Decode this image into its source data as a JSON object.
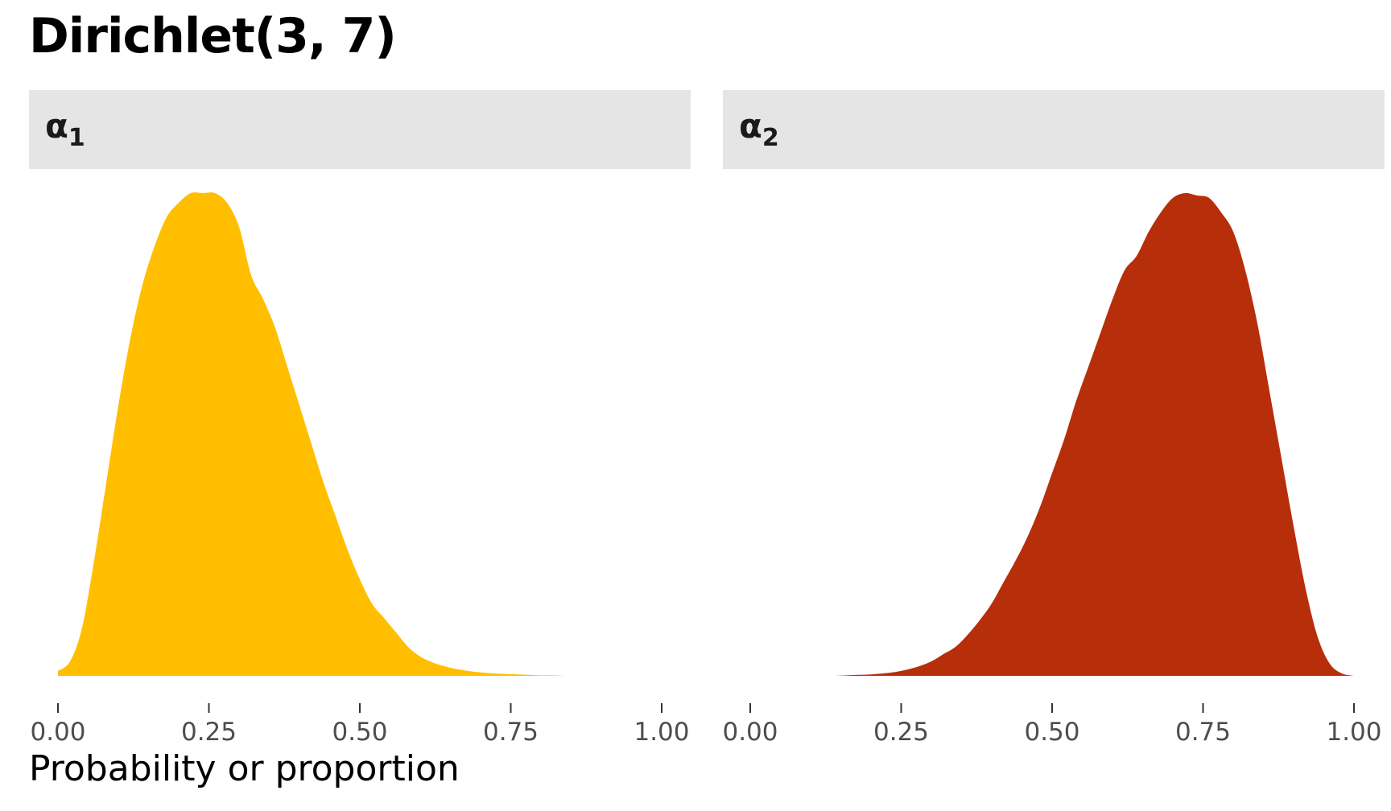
{
  "title": "Dirichlet(3, 7)",
  "xlabel": "Probability or proportion",
  "chart_data": [
    {
      "type": "area",
      "facet_label": "α",
      "facet_subscript": "1",
      "color": "#FFBF00",
      "xlim": [
        0,
        1
      ],
      "x_ticks": [
        "0.00",
        "0.25",
        "0.50",
        "0.75",
        "1.00"
      ],
      "x": [
        0.0,
        0.02,
        0.04,
        0.06,
        0.08,
        0.1,
        0.12,
        0.14,
        0.16,
        0.18,
        0.2,
        0.22,
        0.24,
        0.26,
        0.28,
        0.3,
        0.32,
        0.34,
        0.36,
        0.38,
        0.4,
        0.42,
        0.44,
        0.46,
        0.48,
        0.5,
        0.52,
        0.54,
        0.56,
        0.58,
        0.6,
        0.62,
        0.64,
        0.66,
        0.68,
        0.7,
        0.72,
        0.74,
        0.76,
        0.78,
        0.8,
        0.82,
        0.84,
        0.86,
        0.88
      ],
      "density": [
        0.01,
        0.03,
        0.1,
        0.24,
        0.4,
        0.56,
        0.7,
        0.81,
        0.89,
        0.95,
        0.98,
        1.0,
        1.0,
        1.0,
        0.98,
        0.93,
        0.83,
        0.78,
        0.72,
        0.64,
        0.56,
        0.48,
        0.4,
        0.33,
        0.26,
        0.2,
        0.15,
        0.12,
        0.09,
        0.06,
        0.04,
        0.028,
        0.02,
        0.014,
        0.01,
        0.007,
        0.005,
        0.004,
        0.003,
        0.002,
        0.001,
        0.001,
        0.0,
        0.0,
        0.0
      ]
    },
    {
      "type": "area",
      "facet_label": "α",
      "facet_subscript": "2",
      "color": "#B72E0A",
      "xlim": [
        0,
        1
      ],
      "x_ticks": [
        "0.00",
        "0.25",
        "0.50",
        "0.75",
        "1.00"
      ],
      "x": [
        0.12,
        0.14,
        0.16,
        0.18,
        0.2,
        0.22,
        0.24,
        0.26,
        0.28,
        0.3,
        0.32,
        0.34,
        0.36,
        0.38,
        0.4,
        0.42,
        0.44,
        0.46,
        0.48,
        0.5,
        0.52,
        0.54,
        0.56,
        0.58,
        0.6,
        0.62,
        0.64,
        0.66,
        0.68,
        0.7,
        0.72,
        0.74,
        0.76,
        0.78,
        0.8,
        0.82,
        0.84,
        0.86,
        0.88,
        0.9,
        0.92,
        0.94,
        0.96,
        0.98,
        1.0
      ],
      "density": [
        0.0,
        0.0,
        0.001,
        0.002,
        0.003,
        0.005,
        0.008,
        0.013,
        0.02,
        0.03,
        0.045,
        0.06,
        0.085,
        0.115,
        0.15,
        0.195,
        0.24,
        0.29,
        0.35,
        0.42,
        0.49,
        0.57,
        0.64,
        0.71,
        0.78,
        0.84,
        0.87,
        0.92,
        0.96,
        0.99,
        1.0,
        0.995,
        0.99,
        0.96,
        0.92,
        0.84,
        0.73,
        0.59,
        0.45,
        0.31,
        0.18,
        0.08,
        0.025,
        0.005,
        0.0
      ]
    }
  ]
}
